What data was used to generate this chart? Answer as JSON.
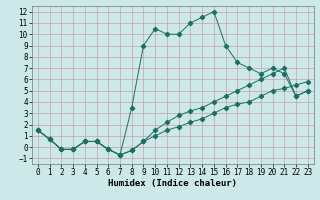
{
  "title": "",
  "xlabel": "Humidex (Indice chaleur)",
  "xlim": [
    -0.5,
    23.5
  ],
  "ylim": [
    -1.5,
    12.5
  ],
  "xticks": [
    0,
    1,
    2,
    3,
    4,
    5,
    6,
    7,
    8,
    9,
    10,
    11,
    12,
    13,
    14,
    15,
    16,
    17,
    18,
    19,
    20,
    21,
    22,
    23
  ],
  "yticks": [
    -1,
    0,
    1,
    2,
    3,
    4,
    5,
    6,
    7,
    8,
    9,
    10,
    11,
    12
  ],
  "bg_color": "#cce8e8",
  "grid_color": "#c8a0a8",
  "line_color": "#1a7060",
  "line1_x": [
    0,
    1,
    2,
    3,
    4,
    5,
    6,
    7,
    8,
    9,
    10,
    11,
    12,
    13,
    14,
    15,
    16,
    17,
    18,
    19,
    20,
    21,
    22,
    23
  ],
  "line1_y": [
    1.5,
    0.7,
    -0.2,
    -0.2,
    0.5,
    0.5,
    -0.2,
    -0.7,
    -0.3,
    0.5,
    1.0,
    1.5,
    1.8,
    2.2,
    2.5,
    3.0,
    3.5,
    3.8,
    4.0,
    4.5,
    5.0,
    5.2,
    5.5,
    5.8
  ],
  "line2_x": [
    0,
    1,
    2,
    3,
    4,
    5,
    6,
    7,
    8,
    9,
    10,
    11,
    12,
    13,
    14,
    15,
    16,
    17,
    18,
    19,
    20,
    21,
    22,
    23
  ],
  "line2_y": [
    1.5,
    0.7,
    -0.2,
    -0.2,
    0.5,
    0.5,
    -0.2,
    -0.7,
    3.5,
    9.0,
    10.5,
    10.0,
    10.0,
    11.0,
    11.5,
    12.0,
    9.0,
    7.5,
    7.0,
    6.5,
    7.0,
    6.5,
    4.5,
    5.0
  ],
  "line3_x": [
    0,
    1,
    2,
    3,
    4,
    5,
    6,
    7,
    8,
    9,
    10,
    11,
    12,
    13,
    14,
    15,
    16,
    17,
    18,
    19,
    20,
    21,
    22,
    23
  ],
  "line3_y": [
    1.5,
    0.7,
    -0.2,
    -0.2,
    0.5,
    0.5,
    -0.2,
    -0.7,
    -0.3,
    0.5,
    1.5,
    2.2,
    2.8,
    3.2,
    3.5,
    4.0,
    4.5,
    5.0,
    5.5,
    6.0,
    6.5,
    7.0,
    4.5,
    5.0
  ],
  "tick_fontsize": 5.5,
  "xlabel_fontsize": 6.5
}
